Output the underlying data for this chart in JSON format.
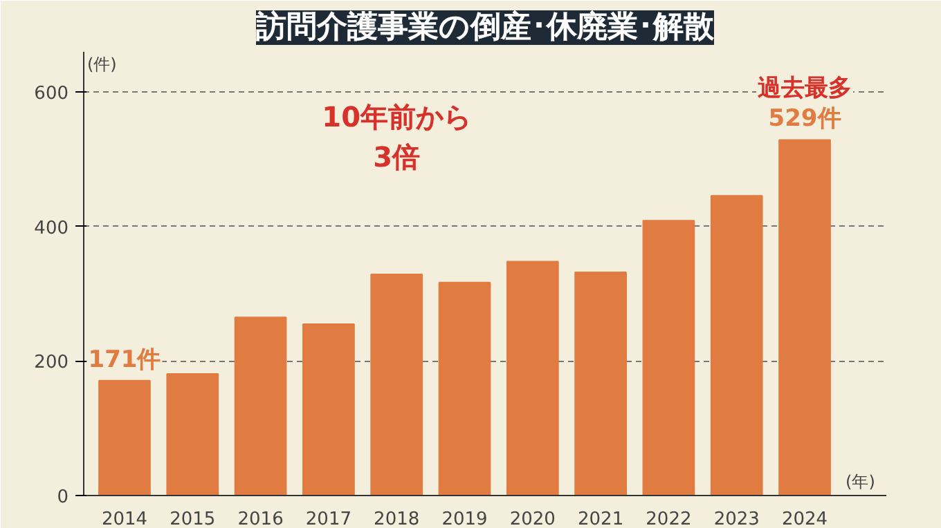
{
  "chart_data": {
    "type": "bar",
    "title": "訪問介護事業の倒産･休廃業･解散",
    "ylabel": "(件)",
    "xlabel": "(年)",
    "categories": [
      "2014",
      "2015",
      "2016",
      "2017",
      "2018",
      "2019",
      "2020",
      "2021",
      "2022",
      "2023",
      "2024"
    ],
    "values": [
      171,
      181,
      265,
      255,
      329,
      317,
      348,
      332,
      409,
      446,
      529
    ],
    "color": "#e07b42",
    "ylim": [
      0,
      660
    ],
    "yticks": [
      0,
      200,
      400,
      600
    ],
    "grid": "y",
    "value_labels": [
      "171件",
      null,
      null,
      null,
      null,
      null,
      null,
      null,
      null,
      null,
      "529件"
    ],
    "annotations": [
      {
        "text": "過去最多",
        "x": "2024",
        "y": 529
      },
      "10年前から\n3倍"
    ]
  }
}
